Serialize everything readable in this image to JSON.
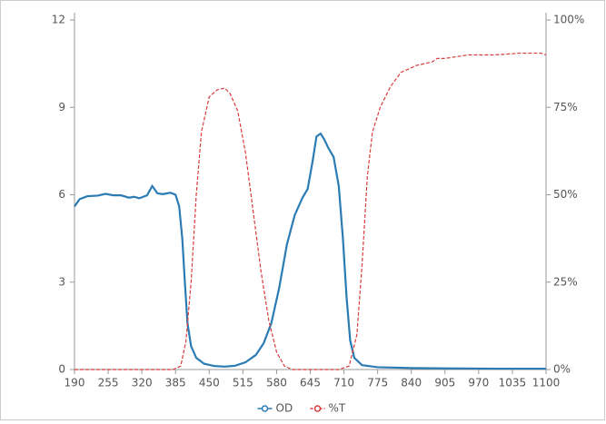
{
  "chart_data": {
    "type": "line",
    "xlim": [
      190,
      1100
    ],
    "xticks": [
      190,
      255,
      320,
      385,
      450,
      515,
      580,
      645,
      710,
      775,
      840,
      905,
      970,
      1035,
      1100
    ],
    "ylim": [
      0,
      12
    ],
    "yticks": [
      0,
      3,
      6,
      9,
      12
    ],
    "y2lim": [
      0,
      100
    ],
    "y2ticks": [
      {
        "value": 0,
        "label": "0%"
      },
      {
        "value": 25,
        "label": "25%"
      },
      {
        "value": 50,
        "label": "50%"
      },
      {
        "value": 75,
        "label": "75%"
      },
      {
        "value": 100,
        "label": "100%"
      }
    ],
    "grid": false,
    "legend": "bottom",
    "series": [
      {
        "name": "OD",
        "color": "#2b7bb4",
        "dashed": false,
        "x": [
          190,
          200,
          215,
          235,
          250,
          265,
          280,
          295,
          305,
          315,
          330,
          340,
          350,
          360,
          375,
          385,
          392,
          398,
          403,
          408,
          415,
          425,
          440,
          460,
          480,
          500,
          520,
          540,
          555,
          570,
          585,
          600,
          615,
          630,
          640,
          650,
          657,
          665,
          672,
          680,
          690,
          700,
          708,
          715,
          722,
          730,
          745,
          775,
          840,
          905,
          1000,
          1100
        ],
        "values": [
          5.6,
          5.85,
          5.95,
          5.97,
          6.03,
          5.98,
          5.98,
          5.9,
          5.93,
          5.88,
          5.98,
          6.3,
          6.05,
          6.02,
          6.07,
          6.0,
          5.6,
          4.5,
          3.0,
          1.6,
          0.8,
          0.4,
          0.2,
          0.12,
          0.1,
          0.13,
          0.25,
          0.5,
          0.9,
          1.6,
          2.8,
          4.3,
          5.3,
          5.9,
          6.2,
          7.2,
          8.0,
          8.1,
          7.9,
          7.6,
          7.3,
          6.3,
          4.5,
          2.5,
          1.0,
          0.4,
          0.15,
          0.08,
          0.05,
          0.04,
          0.03,
          0.03
        ]
      },
      {
        "name": "%T",
        "color": "#d83b3b",
        "dashed": true,
        "axis": "y2",
        "x": [
          190,
          380,
          395,
          405,
          415,
          425,
          435,
          450,
          465,
          480,
          490,
          505,
          520,
          535,
          550,
          565,
          580,
          595,
          610,
          700,
          720,
          735,
          745,
          755,
          765,
          780,
          800,
          820,
          850,
          880,
          890,
          905,
          950,
          1000,
          1050,
          1090,
          1100
        ],
        "values": [
          0,
          0,
          1,
          8,
          25,
          50,
          68,
          78,
          80,
          80.5,
          79,
          74,
          62,
          45,
          28,
          14,
          5,
          1,
          0,
          0,
          1,
          10,
          30,
          55,
          68,
          75,
          81,
          85,
          87,
          88,
          89,
          89,
          90,
          90,
          90.5,
          90.5,
          90
        ]
      }
    ]
  }
}
